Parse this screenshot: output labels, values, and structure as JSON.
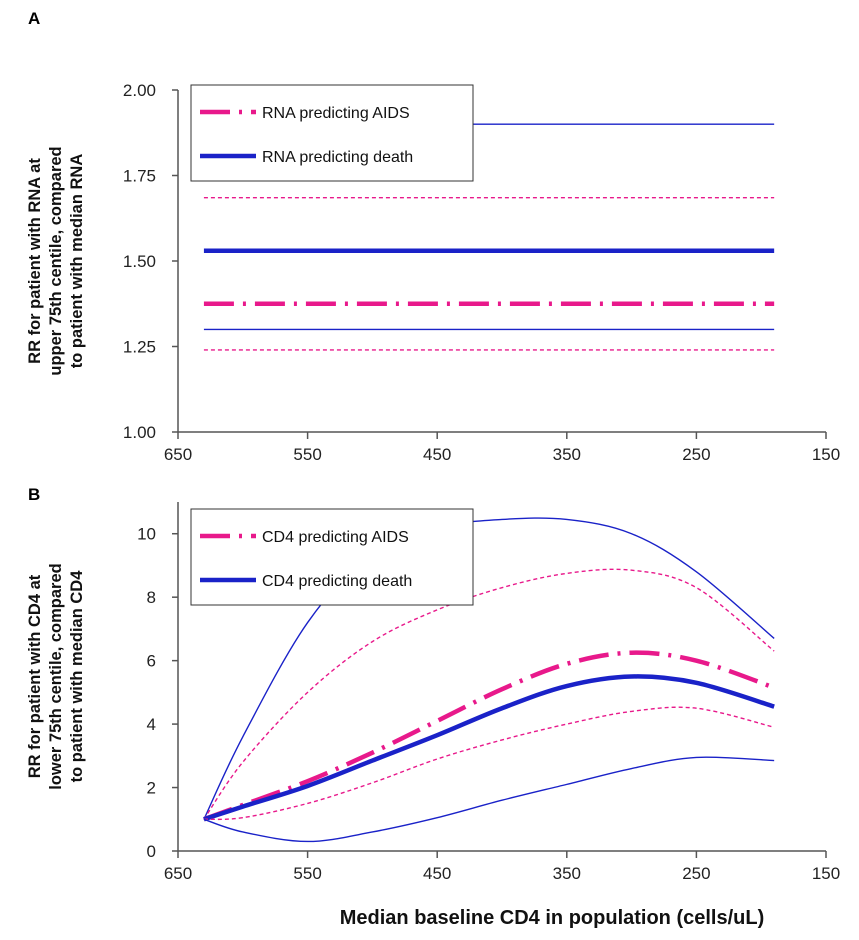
{
  "colors": {
    "aids": "#e8198b",
    "death": "#1a22c8",
    "axis": "#555555"
  },
  "chart_data": [
    {
      "panel_letter": "A",
      "type": "line",
      "ylabel": [
        "RR for patient with RNA at",
        "upper 75th centile, compared",
        "to patient with median RNA"
      ],
      "xlim": [
        650,
        150
      ],
      "ylim": [
        1.0,
        2.0
      ],
      "xticks": [
        650,
        550,
        450,
        350,
        250,
        150
      ],
      "yticks": [
        1.0,
        1.25,
        1.5,
        1.75,
        2.0
      ],
      "ytick_labels": [
        "1.00",
        "1.25",
        "1.50",
        "1.75",
        "2.00"
      ],
      "legend": [
        "RNA predicting AIDS",
        "RNA predicting death"
      ],
      "series": [
        {
          "key": "death_ci_upper",
          "color": "death",
          "style": "thin",
          "x": [
            630,
            190
          ],
          "y": [
            1.9,
            1.9
          ]
        },
        {
          "key": "aids_ci_upper",
          "color": "aids",
          "style": "thin-dash",
          "x": [
            630,
            190
          ],
          "y": [
            1.685,
            1.685
          ]
        },
        {
          "name": "RNA predicting death",
          "color": "death",
          "style": "thick",
          "x": [
            630,
            190
          ],
          "y": [
            1.53,
            1.53
          ]
        },
        {
          "name": "RNA predicting AIDS",
          "color": "aids",
          "style": "thick-dashdot",
          "x": [
            630,
            190
          ],
          "y": [
            1.375,
            1.375
          ]
        },
        {
          "key": "death_ci_lower",
          "color": "death",
          "style": "thin",
          "x": [
            630,
            190
          ],
          "y": [
            1.3,
            1.3
          ]
        },
        {
          "key": "aids_ci_lower",
          "color": "aids",
          "style": "thin-dash",
          "x": [
            630,
            190
          ],
          "y": [
            1.24,
            1.24
          ]
        }
      ]
    },
    {
      "panel_letter": "B",
      "type": "line",
      "ylabel": [
        "RR for patient with CD4 at",
        "lower 75th centile, compared",
        "to patient with median CD4"
      ],
      "xlabel": "Median baseline CD4 in population (cells/uL)",
      "xlim": [
        650,
        150
      ],
      "ylim": [
        0,
        11
      ],
      "xticks": [
        650,
        550,
        450,
        350,
        250,
        150
      ],
      "yticks": [
        0,
        2,
        4,
        6,
        8,
        10
      ],
      "ytick_labels": [
        "0",
        "2",
        "4",
        "6",
        "8",
        "10"
      ],
      "legend": [
        "CD4 predicting AIDS",
        "CD4 predicting death"
      ],
      "series": [
        {
          "key": "death_ci_upper",
          "color": "death",
          "style": "thin",
          "x": [
            630,
            600,
            550,
            500,
            450,
            400,
            350,
            300,
            250,
            190
          ],
          "y": [
            1.0,
            3.6,
            7.2,
            9.4,
            10.2,
            10.45,
            10.45,
            10.0,
            8.8,
            6.7
          ]
        },
        {
          "key": "aids_ci_upper",
          "color": "aids",
          "style": "thin-dash",
          "x": [
            630,
            600,
            550,
            500,
            450,
            400,
            350,
            300,
            250,
            190
          ],
          "y": [
            1.0,
            2.8,
            5.0,
            6.6,
            7.6,
            8.3,
            8.75,
            8.85,
            8.3,
            6.3
          ]
        },
        {
          "name": "CD4 predicting AIDS",
          "color": "aids",
          "style": "thick-dashdot",
          "x": [
            630,
            600,
            550,
            500,
            450,
            400,
            350,
            300,
            250,
            190
          ],
          "y": [
            1.0,
            1.45,
            2.2,
            3.1,
            4.1,
            5.1,
            5.9,
            6.25,
            6.0,
            5.15
          ]
        },
        {
          "name": "CD4 predicting death",
          "color": "death",
          "style": "thick",
          "x": [
            630,
            600,
            550,
            500,
            450,
            400,
            350,
            300,
            250,
            190
          ],
          "y": [
            1.0,
            1.4,
            2.05,
            2.85,
            3.65,
            4.5,
            5.2,
            5.5,
            5.3,
            4.55
          ]
        },
        {
          "key": "aids_ci_lower",
          "color": "aids",
          "style": "thin-dash",
          "x": [
            630,
            600,
            550,
            500,
            450,
            400,
            350,
            300,
            250,
            190
          ],
          "y": [
            1.0,
            1.05,
            1.5,
            2.15,
            2.9,
            3.5,
            4.0,
            4.4,
            4.5,
            3.9
          ]
        },
        {
          "key": "death_ci_lower",
          "color": "death",
          "style": "thin",
          "x": [
            630,
            600,
            550,
            500,
            450,
            400,
            350,
            300,
            250,
            190
          ],
          "y": [
            1.0,
            0.6,
            0.3,
            0.6,
            1.05,
            1.6,
            2.1,
            2.6,
            2.95,
            2.85
          ]
        }
      ]
    }
  ]
}
